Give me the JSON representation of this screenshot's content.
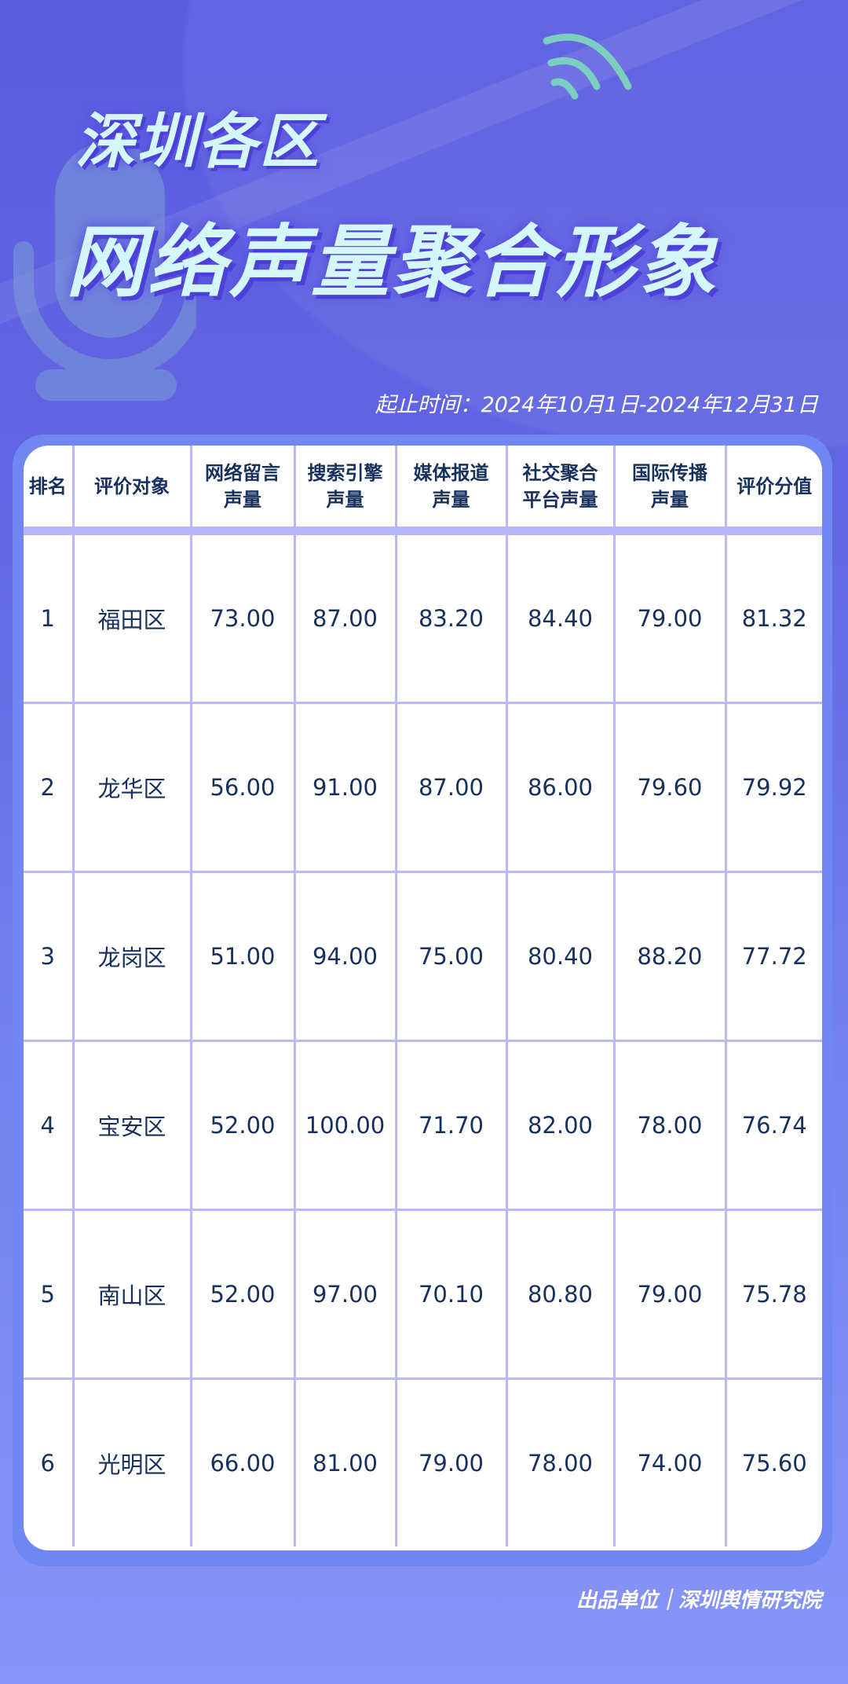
{
  "header": {
    "title_line1": "深圳各区",
    "title_line2": "网络声量聚合形象",
    "date_range": "起止时间：2024年10月1日-2024年12月31日"
  },
  "table": {
    "columns": [
      "排名",
      "评价对象",
      "网络留言\n声量",
      "搜索引擎\n声量",
      "媒体报道\n声量",
      "社交聚合\n平台声量",
      "国际传播\n声量",
      "评价分值"
    ],
    "rows": [
      [
        "1",
        "福田区",
        "73.00",
        "87.00",
        "83.20",
        "84.40",
        "79.00",
        "81.32"
      ],
      [
        "2",
        "龙华区",
        "56.00",
        "91.00",
        "87.00",
        "86.00",
        "79.60",
        "79.92"
      ],
      [
        "3",
        "龙岗区",
        "51.00",
        "94.00",
        "75.00",
        "80.40",
        "88.20",
        "77.72"
      ],
      [
        "4",
        "宝安区",
        "52.00",
        "100.00",
        "71.70",
        "82.00",
        "78.00",
        "76.74"
      ],
      [
        "5",
        "南山区",
        "52.00",
        "97.00",
        "70.10",
        "80.80",
        "79.00",
        "75.78"
      ],
      [
        "6",
        "光明区",
        "66.00",
        "81.00",
        "79.00",
        "78.00",
        "74.00",
        "75.60"
      ]
    ]
  },
  "footer": {
    "credit": "出品单位｜深圳舆情研究院"
  },
  "icons": {
    "background_left": "microphone-icon",
    "background_top_right": "signal-waves-icon"
  },
  "colors": {
    "text": "#17305e",
    "title": "#d4f7fb",
    "grid": "#b9b9ff"
  }
}
